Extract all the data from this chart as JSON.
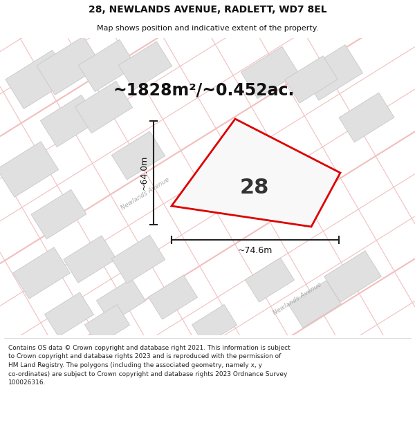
{
  "title": "28, NEWLANDS AVENUE, RADLETT, WD7 8EL",
  "subtitle": "Map shows position and indicative extent of the property.",
  "area_label": "~1828m²/~0.452ac.",
  "number_label": "28",
  "dim_horizontal": "~74.6m",
  "dim_vertical": "~64.0m",
  "street_label_1": "Newlands Avenue",
  "street_label_2": "Newlands Avenue",
  "footer_lines": [
    "Contains OS data © Crown copyright and database right 2021. This information is subject to Crown copyright and database rights 2023 and is reproduced with the permission of",
    "HM Land Registry. The polygons (including the associated geometry, namely x, y co-ordinates) are subject to Crown copyright and database rights 2023 Ordnance Survey",
    "100026316."
  ],
  "road_color": "#f2bfbf",
  "road_lw": 0.8,
  "building_fc": "#e0e0e0",
  "building_ec": "#c8c8c8",
  "plot_fc": "#f8f8f8",
  "plot_ec": "#dd0000",
  "plot_lw": 2.0,
  "dim_color": "#222222",
  "street_color": "#aaaaaa",
  "map_bg": "#fafafa",
  "title_fontsize": 10,
  "subtitle_fontsize": 8,
  "area_fontsize": 17,
  "number_fontsize": 22,
  "dim_fontsize": 9,
  "street_fontsize": 6.5,
  "footer_fontsize": 6.5
}
